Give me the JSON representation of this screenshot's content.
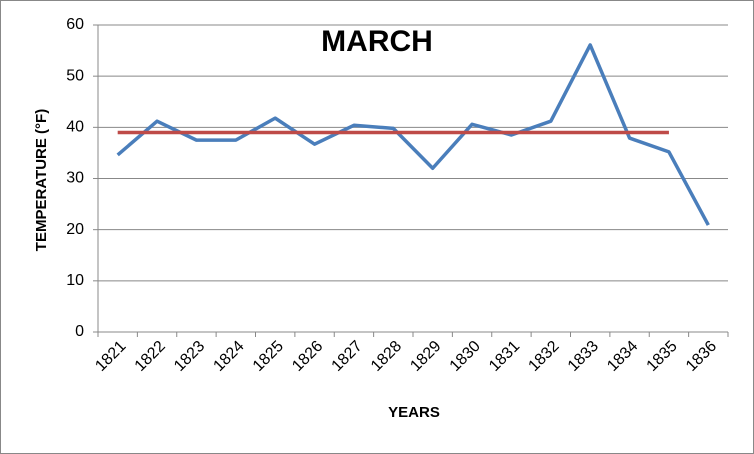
{
  "chart_data": {
    "type": "line",
    "title": "MARCH",
    "x_label": "YEARS",
    "y_label": "TEMPERATURE (°F)",
    "categories": [
      "1821",
      "1822",
      "1823",
      "1824",
      "1825",
      "1826",
      "1827",
      "1828",
      "1829",
      "1830",
      "1831",
      "1832",
      "1833",
      "1834",
      "1835",
      "1836"
    ],
    "series": [
      {
        "color": "#4a7ebb",
        "values": [
          34.6,
          41.2,
          37.5,
          37.5,
          41.8,
          36.7,
          40.4,
          39.8,
          32.0,
          40.6,
          38.5,
          41.2,
          56.1,
          37.9,
          35.2,
          20.9
        ]
      },
      {
        "color": "#be4b48",
        "values": [
          39,
          39,
          39,
          39,
          39,
          39,
          39,
          39,
          39,
          39,
          39,
          39,
          39,
          39,
          39,
          null
        ]
      }
    ],
    "ylim": [
      0,
      60
    ],
    "yticks": [
      0,
      10,
      20,
      30,
      40,
      50,
      60
    ],
    "grid": true
  }
}
